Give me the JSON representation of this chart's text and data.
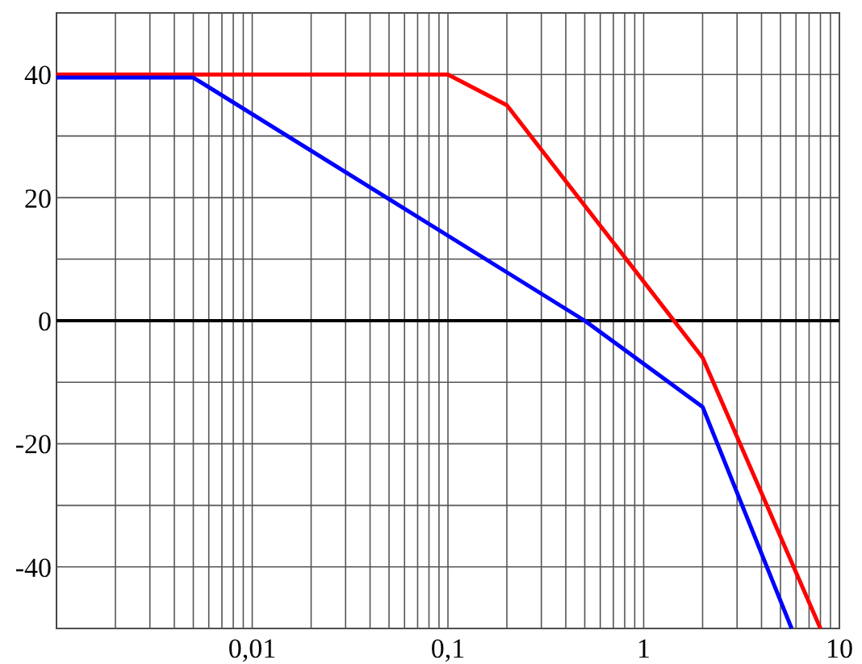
{
  "chart_data": {
    "type": "line",
    "log": "x",
    "grid": true,
    "xlim": [
      0.001,
      10
    ],
    "ylim": [
      -50,
      50
    ],
    "xticks": [
      {
        "value": 0.002,
        "label": null
      },
      {
        "value": 0.003,
        "label": null
      },
      {
        "value": 0.004,
        "label": null
      },
      {
        "value": 0.005,
        "label": null
      },
      {
        "value": 0.006,
        "label": null
      },
      {
        "value": 0.007,
        "label": null
      },
      {
        "value": 0.008,
        "label": null
      },
      {
        "value": 0.009,
        "label": null
      },
      {
        "value": 0.01,
        "label": "0,01"
      },
      {
        "value": 0.02,
        "label": null
      },
      {
        "value": 0.03,
        "label": null
      },
      {
        "value": 0.04,
        "label": null
      },
      {
        "value": 0.05,
        "label": null
      },
      {
        "value": 0.06,
        "label": null
      },
      {
        "value": 0.07,
        "label": null
      },
      {
        "value": 0.08,
        "label": null
      },
      {
        "value": 0.09,
        "label": null
      },
      {
        "value": 0.1,
        "label": "0,1"
      },
      {
        "value": 0.2,
        "label": null
      },
      {
        "value": 0.3,
        "label": null
      },
      {
        "value": 0.4,
        "label": null
      },
      {
        "value": 0.5,
        "label": null
      },
      {
        "value": 0.6,
        "label": null
      },
      {
        "value": 0.7,
        "label": null
      },
      {
        "value": 0.8,
        "label": null
      },
      {
        "value": 0.9,
        "label": null
      },
      {
        "value": 1,
        "label": "1"
      },
      {
        "value": 2,
        "label": null
      },
      {
        "value": 3,
        "label": null
      },
      {
        "value": 4,
        "label": null
      },
      {
        "value": 5,
        "label": null
      },
      {
        "value": 6,
        "label": null
      },
      {
        "value": 7,
        "label": null
      },
      {
        "value": 8,
        "label": null
      },
      {
        "value": 9,
        "label": null
      },
      {
        "value": 10,
        "label": "10"
      }
    ],
    "yticks": [
      {
        "value": -50,
        "label": null
      },
      -40,
      {
        "value": -30,
        "label": null
      },
      -20,
      {
        "value": -10,
        "label": null
      },
      0,
      {
        "value": 10,
        "label": null
      },
      20,
      {
        "value": 30,
        "label": null
      },
      40,
      {
        "value": 50,
        "label": null
      }
    ],
    "ref_lines": [
      {
        "axis": "y",
        "value": 0,
        "label": null,
        "color": "#000000"
      }
    ],
    "series": [
      {
        "color": "#ff0000",
        "x": [
          0.001,
          0.1,
          0.2,
          2,
          8
        ],
        "values": [
          40,
          40,
          35,
          -6,
          -50
        ]
      },
      {
        "color": "#0000ff",
        "x": [
          0.001,
          0.005,
          0.5,
          2,
          5.7
        ],
        "values": [
          39.5,
          39.5,
          0,
          -14,
          -50
        ]
      }
    ]
  }
}
